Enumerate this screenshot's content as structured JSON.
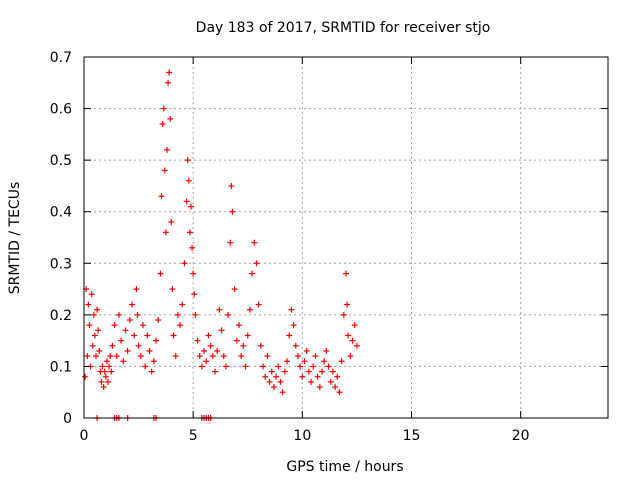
{
  "chart_data": {
    "type": "scatter",
    "title": "Day 183 of 2017, SRMTID for receiver stjo",
    "xlabel": "GPS time / hours",
    "ylabel": "SRMTID / TECUs",
    "xlim": [
      0,
      24
    ],
    "ylim": [
      0,
      0.7
    ],
    "grid": true,
    "legend": "none",
    "marker": "plus",
    "series_color": "#ff0000",
    "x_ticks": [
      {
        "value": 0,
        "label": "0"
      },
      {
        "value": 5,
        "label": "5"
      },
      {
        "value": 10,
        "label": "10"
      },
      {
        "value": 15,
        "label": "15"
      },
      {
        "value": 20,
        "label": "20"
      }
    ],
    "y_ticks": [
      {
        "value": 0,
        "label": "0"
      },
      {
        "value": 0.1,
        "label": "0.1"
      },
      {
        "value": 0.2,
        "label": "0.2"
      },
      {
        "value": 0.3,
        "label": "0.3"
      },
      {
        "value": 0.4,
        "label": "0.4"
      },
      {
        "value": 0.5,
        "label": "0.5"
      },
      {
        "value": 0.6,
        "label": "0.6"
      },
      {
        "value": 0.7,
        "label": "0.7"
      }
    ],
    "series": [
      {
        "name": "SRMTID",
        "points": [
          [
            0.05,
            0.08
          ],
          [
            0.1,
            0.25
          ],
          [
            0.15,
            0.12
          ],
          [
            0.2,
            0.22
          ],
          [
            0.25,
            0.18
          ],
          [
            0.3,
            0.1
          ],
          [
            0.35,
            0.24
          ],
          [
            0.4,
            0.14
          ],
          [
            0.45,
            0.2
          ],
          [
            0.5,
            0.16
          ],
          [
            0.55,
            0.12
          ],
          [
            0.6,
            0.21
          ],
          [
            0.65,
            0.17
          ],
          [
            0.7,
            0.13
          ],
          [
            0.75,
            0.09
          ],
          [
            0.8,
            0.07
          ],
          [
            0.85,
            0.1
          ],
          [
            0.9,
            0.06
          ],
          [
            0.95,
            0.09
          ],
          [
            1.0,
            0.08
          ],
          [
            1.05,
            0.11
          ],
          [
            1.1,
            0.07
          ],
          [
            1.15,
            0.1
          ],
          [
            1.2,
            0.12
          ],
          [
            1.25,
            0.09
          ],
          [
            1.3,
            0.14
          ],
          [
            1.4,
            0.18
          ],
          [
            1.5,
            0.12
          ],
          [
            1.6,
            0.2
          ],
          [
            1.7,
            0.15
          ],
          [
            1.8,
            0.11
          ],
          [
            1.9,
            0.17
          ],
          [
            2.0,
            0.13
          ],
          [
            2.1,
            0.19
          ],
          [
            2.2,
            0.22
          ],
          [
            2.3,
            0.16
          ],
          [
            2.4,
            0.25
          ],
          [
            2.45,
            0.2
          ],
          [
            2.5,
            0.14
          ],
          [
            2.6,
            0.12
          ],
          [
            2.7,
            0.18
          ],
          [
            2.8,
            0.1
          ],
          [
            2.9,
            0.16
          ],
          [
            3.0,
            0.13
          ],
          [
            3.1,
            0.09
          ],
          [
            3.2,
            0.11
          ],
          [
            3.3,
            0.15
          ],
          [
            3.4,
            0.19
          ],
          [
            3.5,
            0.28
          ],
          [
            3.55,
            0.43
          ],
          [
            3.6,
            0.57
          ],
          [
            3.65,
            0.6
          ],
          [
            3.7,
            0.48
          ],
          [
            3.75,
            0.36
          ],
          [
            3.8,
            0.52
          ],
          [
            3.85,
            0.65
          ],
          [
            3.9,
            0.67
          ],
          [
            3.95,
            0.58
          ],
          [
            4.0,
            0.38
          ],
          [
            4.05,
            0.25
          ],
          [
            4.1,
            0.16
          ],
          [
            4.2,
            0.12
          ],
          [
            4.3,
            0.2
          ],
          [
            4.4,
            0.18
          ],
          [
            4.5,
            0.22
          ],
          [
            4.6,
            0.3
          ],
          [
            4.7,
            0.42
          ],
          [
            4.75,
            0.5
          ],
          [
            4.8,
            0.46
          ],
          [
            4.85,
            0.36
          ],
          [
            4.9,
            0.41
          ],
          [
            4.95,
            0.33
          ],
          [
            5.0,
            0.28
          ],
          [
            5.05,
            0.24
          ],
          [
            5.1,
            0.2
          ],
          [
            5.2,
            0.15
          ],
          [
            5.3,
            0.12
          ],
          [
            5.4,
            0.1
          ],
          [
            5.5,
            0.13
          ],
          [
            5.6,
            0.11
          ],
          [
            5.7,
            0.16
          ],
          [
            5.8,
            0.14
          ],
          [
            5.9,
            0.12
          ],
          [
            6.0,
            0.09
          ],
          [
            6.1,
            0.13
          ],
          [
            6.2,
            0.21
          ],
          [
            6.3,
            0.17
          ],
          [
            6.4,
            0.12
          ],
          [
            6.5,
            0.1
          ],
          [
            6.6,
            0.2
          ],
          [
            6.7,
            0.34
          ],
          [
            6.75,
            0.45
          ],
          [
            6.8,
            0.4
          ],
          [
            6.9,
            0.25
          ],
          [
            7.0,
            0.15
          ],
          [
            7.1,
            0.18
          ],
          [
            7.2,
            0.12
          ],
          [
            7.3,
            0.14
          ],
          [
            7.4,
            0.1
          ],
          [
            7.5,
            0.16
          ],
          [
            7.6,
            0.21
          ],
          [
            7.7,
            0.28
          ],
          [
            7.8,
            0.34
          ],
          [
            7.9,
            0.3
          ],
          [
            8.0,
            0.22
          ],
          [
            8.1,
            0.14
          ],
          [
            8.2,
            0.1
          ],
          [
            8.3,
            0.08
          ],
          [
            8.4,
            0.12
          ],
          [
            8.5,
            0.07
          ],
          [
            8.6,
            0.09
          ],
          [
            8.7,
            0.06
          ],
          [
            8.8,
            0.08
          ],
          [
            8.9,
            0.1
          ],
          [
            9.0,
            0.07
          ],
          [
            9.1,
            0.05
          ],
          [
            9.2,
            0.09
          ],
          [
            9.3,
            0.11
          ],
          [
            9.4,
            0.16
          ],
          [
            9.5,
            0.21
          ],
          [
            9.6,
            0.18
          ],
          [
            9.7,
            0.14
          ],
          [
            9.8,
            0.12
          ],
          [
            9.9,
            0.1
          ],
          [
            10.0,
            0.08
          ],
          [
            10.1,
            0.11
          ],
          [
            10.2,
            0.13
          ],
          [
            10.3,
            0.09
          ],
          [
            10.4,
            0.07
          ],
          [
            10.5,
            0.1
          ],
          [
            10.6,
            0.12
          ],
          [
            10.7,
            0.08
          ],
          [
            10.8,
            0.06
          ],
          [
            10.9,
            0.09
          ],
          [
            11.0,
            0.11
          ],
          [
            11.1,
            0.13
          ],
          [
            11.2,
            0.1
          ],
          [
            11.3,
            0.07
          ],
          [
            11.4,
            0.09
          ],
          [
            11.5,
            0.06
          ],
          [
            11.6,
            0.08
          ],
          [
            11.7,
            0.05
          ],
          [
            11.8,
            0.11
          ],
          [
            11.9,
            0.2
          ],
          [
            12.0,
            0.28
          ],
          [
            12.05,
            0.22
          ],
          [
            12.1,
            0.16
          ],
          [
            12.2,
            0.12
          ],
          [
            12.3,
            0.15
          ],
          [
            12.4,
            0.18
          ],
          [
            12.5,
            0.14
          ],
          [
            0.6,
            0.0
          ],
          [
            1.4,
            0.0
          ],
          [
            1.5,
            0.0
          ],
          [
            1.6,
            0.0
          ],
          [
            2.0,
            0.0
          ],
          [
            3.2,
            0.0
          ],
          [
            3.3,
            0.0
          ],
          [
            5.4,
            0.0
          ],
          [
            5.5,
            0.0
          ],
          [
            5.6,
            0.0
          ],
          [
            5.7,
            0.0
          ],
          [
            5.8,
            0.0
          ]
        ]
      }
    ]
  }
}
